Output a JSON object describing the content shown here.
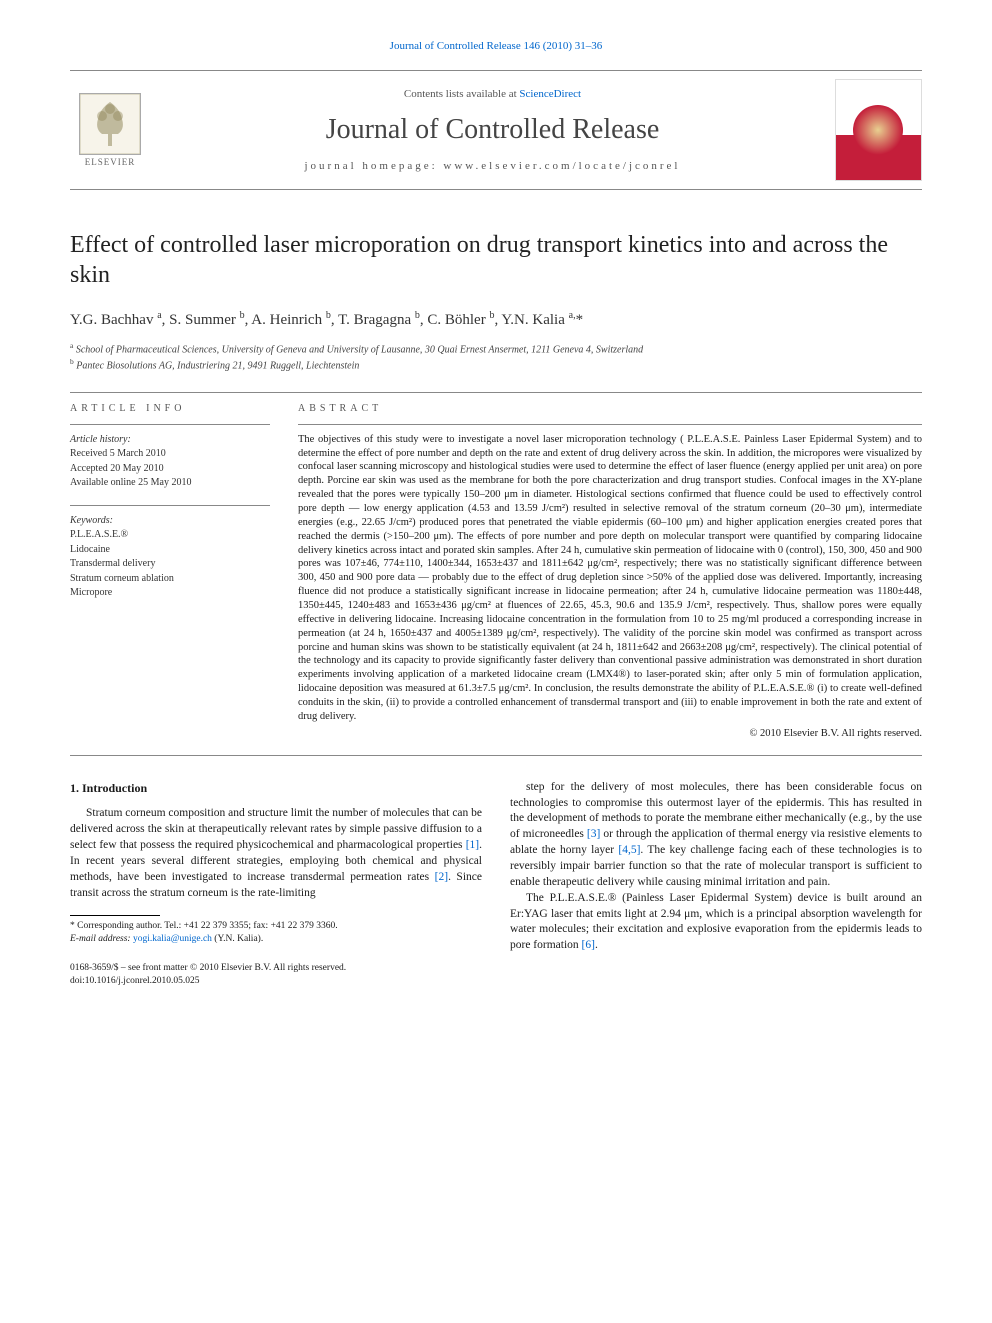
{
  "top_link": "Journal of Controlled Release 146 (2010) 31–36",
  "masthead": {
    "contents_prefix": "Contents lists available at ",
    "contents_link": "ScienceDirect",
    "journal_name": "Journal of Controlled Release",
    "homepage_prefix": "journal homepage: ",
    "homepage_url": "www.elsevier.com/locate/jconrel",
    "publisher": "ELSEVIER"
  },
  "title": "Effect of controlled laser microporation on drug transport kinetics into and across the skin",
  "authors_html": "Y.G. Bachhav <sup>a</sup>, S. Summer <sup>b</sup>, A. Heinrich <sup>b</sup>, T. Bragagna <sup>b</sup>, C. Böhler <sup>b</sup>, Y.N. Kalia <sup>a,</sup>*",
  "affiliations": [
    {
      "sup": "a",
      "text": "School of Pharmaceutical Sciences, University of Geneva and University of Lausanne, 30 Quai Ernest Ansermet, 1211 Geneva 4, Switzerland"
    },
    {
      "sup": "b",
      "text": "Pantec Biosolutions AG, Industriering 21, 9491 Ruggell, Liechtenstein"
    }
  ],
  "info": {
    "heading": "article info",
    "history_label": "Article history:",
    "received": "Received 5 March 2010",
    "accepted": "Accepted 20 May 2010",
    "available": "Available online 25 May 2010",
    "keywords_label": "Keywords:",
    "keywords": [
      "P.L.E.A.S.E.®",
      "Lidocaine",
      "Transdermal delivery",
      "Stratum corneum ablation",
      "Micropore"
    ]
  },
  "abstract": {
    "heading": "abstract",
    "text": "The objectives of this study were to investigate a novel laser microporation technology ( P.L.E.A.S.E. Painless Laser Epidermal System) and to determine the effect of pore number and depth on the rate and extent of drug delivery across the skin. In addition, the micropores were visualized by confocal laser scanning microscopy and histological studies were used to determine the effect of laser fluence (energy applied per unit area) on pore depth. Porcine ear skin was used as the membrane for both the pore characterization and drug transport studies. Confocal images in the XY-plane revealed that the pores were typically 150–200 μm in diameter. Histological sections confirmed that fluence could be used to effectively control pore depth — low energy application (4.53 and 13.59 J/cm²) resulted in selective removal of the stratum corneum (20–30 μm), intermediate energies (e.g., 22.65 J/cm²) produced pores that penetrated the viable epidermis (60–100 μm) and higher application energies created pores that reached the dermis (>150–200 μm). The effects of pore number and pore depth on molecular transport were quantified by comparing lidocaine delivery kinetics across intact and porated skin samples. After 24 h, cumulative skin permeation of lidocaine with 0 (control), 150, 300, 450 and 900 pores was 107±46, 774±110, 1400±344, 1653±437 and 1811±642 μg/cm², respectively; there was no statistically significant difference between 300, 450 and 900 pore data — probably due to the effect of drug depletion since >50% of the applied dose was delivered. Importantly, increasing fluence did not produce a statistically significant increase in lidocaine permeation; after 24 h, cumulative lidocaine permeation was 1180±448, 1350±445, 1240±483 and 1653±436 μg/cm² at fluences of 22.65, 45.3, 90.6 and 135.9 J/cm², respectively. Thus, shallow pores were equally effective in delivering lidocaine. Increasing lidocaine concentration in the formulation from 10 to 25 mg/ml produced a corresponding increase in permeation (at 24 h, 1650±437 and 4005±1389 μg/cm², respectively). The validity of the porcine skin model was confirmed as transport across porcine and human skins was shown to be statistically equivalent (at 24 h, 1811±642 and 2663±208 μg/cm², respectively). The clinical potential of the technology and its capacity to provide significantly faster delivery than conventional passive administration was demonstrated in short duration experiments involving application of a marketed lidocaine cream (LMX4®) to laser-porated skin; after only 5 min of formulation application, lidocaine deposition was measured at 61.3±7.5 μg/cm². In conclusion, the results demonstrate the ability of P.L.E.A.S.E.® (i) to create well-defined conduits in the skin, (ii) to provide a controlled enhancement of transdermal transport and (iii) to enable improvement in both the rate and extent of drug delivery.",
    "copyright": "© 2010 Elsevier B.V. All rights reserved."
  },
  "body": {
    "left": {
      "heading": "1. Introduction",
      "para1_html": "Stratum corneum composition and structure limit the number of molecules that can be delivered across the skin at therapeutically relevant rates by simple passive diffusion to a select few that possess the required physicochemical and pharmacological properties <span class=\"ref-link\">[1]</span>. In recent years several different strategies, employing both chemical and physical methods, have been investigated to increase transdermal permeation rates <span class=\"ref-link\">[2]</span>. Since transit across the stratum corneum is the rate-limiting"
    },
    "right": {
      "para1_html": "step for the delivery of most molecules, there has been considerable focus on technologies to compromise this outermost layer of the epidermis. This has resulted in the development of methods to porate the membrane either mechanically (e.g., by the use of microneedles <span class=\"ref-link\">[3]</span> or through the application of thermal energy via resistive elements to ablate the horny layer <span class=\"ref-link\">[4,5]</span>. The key challenge facing each of these technologies is to reversibly impair barrier function so that the rate of molecular transport is sufficient to enable therapeutic delivery while causing minimal irritation and pain.",
      "para2_html": "The P.L.E.A.S.E.® (Painless Laser Epidermal System) device is built around an Er:YAG laser that emits light at 2.94 μm, which is a principal absorption wavelength for water molecules; their excitation and explosive evaporation from the epidermis leads to pore formation <span class=\"ref-link\">[6]</span>."
    }
  },
  "footnote": {
    "corr": "* Corresponding author. Tel.: +41 22 379 3355; fax: +41 22 379 3360.",
    "email_label": "E-mail address:",
    "email": "yogi.kalia@unige.ch",
    "email_paren": "(Y.N. Kalia)."
  },
  "bottom": {
    "line1": "0168-3659/$ – see front matter © 2010 Elsevier B.V. All rights reserved.",
    "line2": "doi:10.1016/j.jconrel.2010.05.025"
  },
  "colors": {
    "link": "#0066cc",
    "rule": "#888",
    "text": "#1a1a1a",
    "brand_red": "#c41e3a"
  }
}
